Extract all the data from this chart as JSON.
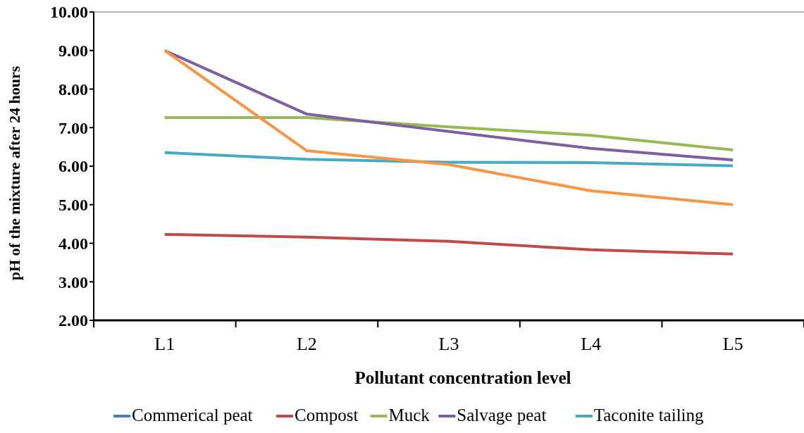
{
  "chart_data": {
    "type": "line",
    "xlabel": "Pollutant concentration level",
    "ylabel": "pH of the mixture after 24 hours",
    "categories": [
      "L1",
      "L2",
      "L3",
      "L4",
      "L5"
    ],
    "series": [
      {
        "name": "Commerical peat",
        "color": "#4a7ebb",
        "values": [
          null,
          null,
          null,
          null,
          null
        ]
      },
      {
        "name": "Compost",
        "color": "#be4b48",
        "values": [
          4.23,
          4.16,
          4.05,
          3.83,
          3.72
        ]
      },
      {
        "name": "Muck",
        "color": "#98b954",
        "values": [
          7.26,
          7.26,
          7.02,
          6.8,
          6.42
        ]
      },
      {
        "name": "Salvage peat",
        "color": "#7d60a0",
        "values": [
          9.0,
          7.35,
          6.9,
          6.46,
          6.16
        ]
      },
      {
        "name": "Taconite tailing",
        "color": "#46aac5",
        "values": [
          6.35,
          6.18,
          6.1,
          6.09,
          6.01
        ]
      },
      {
        "color": "#f79646",
        "values": [
          9.0,
          6.4,
          6.04,
          5.36,
          5.0
        ]
      }
    ],
    "ylim": [
      2,
      10
    ],
    "yticks": [
      {
        "value": 2,
        "label": "2.00"
      },
      {
        "value": 3,
        "label": "3.00"
      },
      {
        "value": 4,
        "label": "4.00"
      },
      {
        "value": 5,
        "label": "5.00"
      },
      {
        "value": 6,
        "label": "6.00"
      },
      {
        "value": 7,
        "label": "7.00"
      },
      {
        "value": 8,
        "label": "8.00"
      },
      {
        "value": 9,
        "label": "9.00"
      },
      {
        "value": 10,
        "label": "10.00"
      }
    ],
    "legend": "bottom",
    "marker": "none",
    "line_style": "solid",
    "grid": false
  }
}
